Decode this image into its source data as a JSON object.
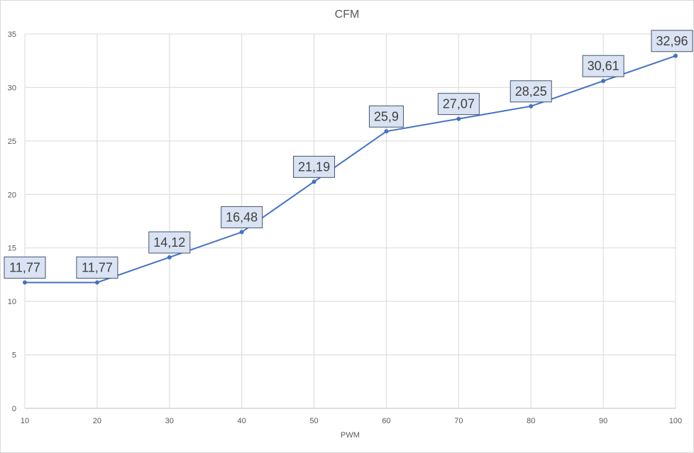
{
  "chart_data": {
    "type": "line",
    "title": "CFM",
    "xlabel": "PWM",
    "ylabel": "",
    "x": [
      10,
      20,
      30,
      40,
      50,
      60,
      70,
      80,
      90,
      100
    ],
    "series": [
      {
        "values": [
          11.77,
          11.77,
          14.12,
          16.48,
          21.19,
          25.9,
          27.07,
          28.25,
          30.61,
          32.96
        ],
        "labels": [
          "11,77",
          "11,77",
          "14,12",
          "16,48",
          "21,19",
          "25,9",
          "27,07",
          "28,25",
          "30,61",
          "32,96"
        ]
      }
    ],
    "x_ticks": [
      "10",
      "20",
      "30",
      "40",
      "50",
      "60",
      "70",
      "80",
      "90",
      "100"
    ],
    "y_ticks": [
      "0",
      "5",
      "10",
      "15",
      "20",
      "25",
      "30",
      "35"
    ],
    "xlim": [
      10,
      100
    ],
    "ylim": [
      0,
      35
    ],
    "grid": true,
    "legend": "none",
    "colors": {
      "line": "#4472c4",
      "grid": "#d9d9d9",
      "label_fill": "#dae3f3",
      "label_border": "#44546a",
      "text": "#595959"
    }
  }
}
